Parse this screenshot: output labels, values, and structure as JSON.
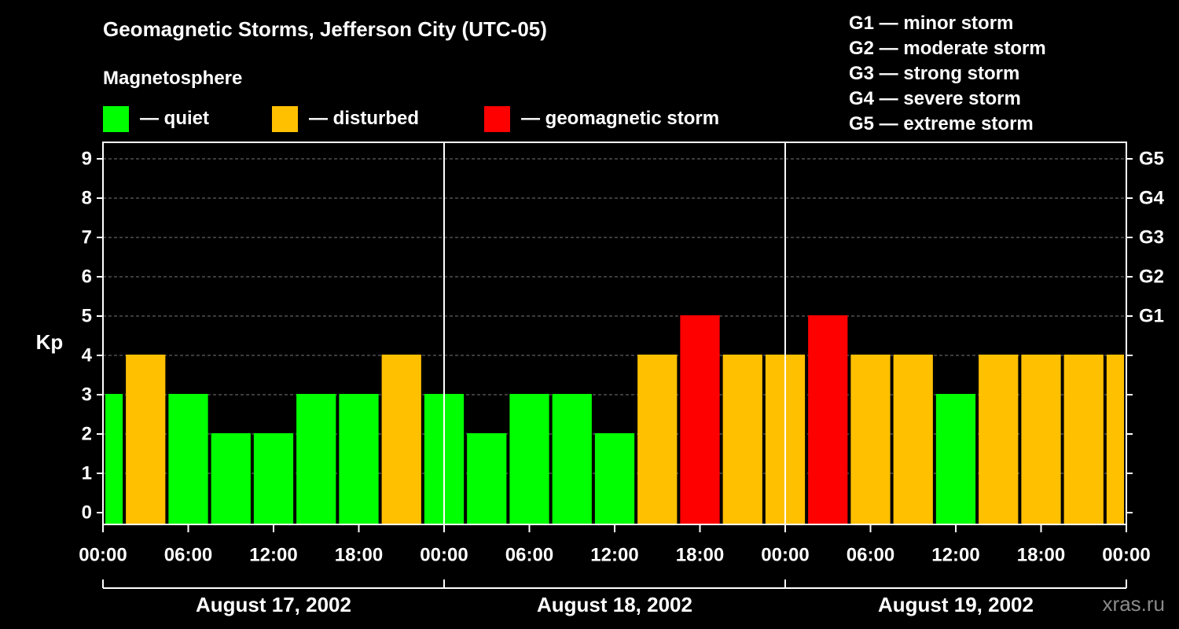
{
  "title": "Geomagnetic Storms, Jefferson City (UTC-05)",
  "subtitle": "Magnetosphere",
  "legend": [
    {
      "label": "— quiet",
      "color": "#00ff00"
    },
    {
      "label": "— disturbed",
      "color": "#ffc000"
    },
    {
      "label": "— geomagnetic storm",
      "color": "#ff0000"
    }
  ],
  "storm_scale": [
    "G1 — minor storm",
    "G2 — moderate storm",
    "G3 — strong storm",
    "G4 — severe storm",
    "G5 — extreme storm"
  ],
  "watermark": "xras.ru",
  "colors": {
    "quiet": "#00ff00",
    "disturbed": "#ffc000",
    "storm": "#ff0000"
  },
  "chart_data": {
    "type": "bar",
    "ylabel": "Kp",
    "ylim": [
      0,
      9
    ],
    "y_ticks": [
      0,
      1,
      2,
      3,
      4,
      5,
      6,
      7,
      8,
      9
    ],
    "right_ticks": [
      {
        "kp": 5,
        "label": "G1"
      },
      {
        "kp": 6,
        "label": "G2"
      },
      {
        "kp": 7,
        "label": "G3"
      },
      {
        "kp": 8,
        "label": "G4"
      },
      {
        "kp": 9,
        "label": "G5"
      }
    ],
    "grid": true,
    "x_tick_labels": [
      "00:00",
      "06:00",
      "12:00",
      "18:00",
      "00:00",
      "06:00",
      "12:00",
      "18:00",
      "00:00",
      "06:00",
      "12:00",
      "18:00",
      "00:00"
    ],
    "days": [
      "August 17, 2002",
      "August 18, 2002",
      "August 19, 2002"
    ],
    "series": [
      {
        "values": [
          3,
          4,
          3,
          2,
          2,
          3,
          3,
          4,
          3,
          2,
          3,
          3,
          2,
          4,
          5,
          4,
          4,
          5,
          4,
          4,
          3,
          4,
          4,
          4,
          4
        ],
        "status": [
          "quiet",
          "disturbed",
          "quiet",
          "quiet",
          "quiet",
          "quiet",
          "quiet",
          "disturbed",
          "quiet",
          "quiet",
          "quiet",
          "quiet",
          "quiet",
          "disturbed",
          "storm",
          "disturbed",
          "disturbed",
          "storm",
          "disturbed",
          "disturbed",
          "quiet",
          "disturbed",
          "disturbed",
          "disturbed",
          "disturbed"
        ]
      }
    ]
  }
}
